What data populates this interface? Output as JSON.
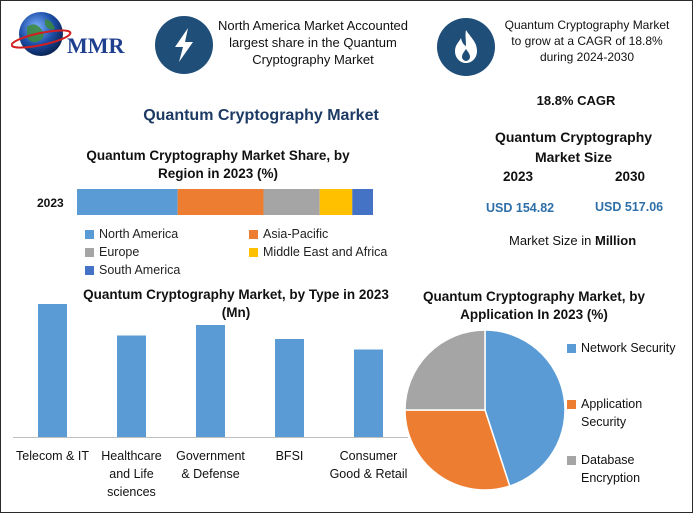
{
  "brand": {
    "logo_text": "MMR"
  },
  "header": {
    "left_fact": "North America Market Accounted largest share in the Quantum Cryptography Market",
    "right_fact": "Quantum Cryptography Market to grow at a CAGR of 18.8% during 2024-2030"
  },
  "main_title": "Quantum Cryptography Market",
  "cagr_label": "18.8% CAGR",
  "market_size": {
    "title": "Quantum Cryptography Market Size",
    "year_a": "2023",
    "year_b": "2030",
    "value_a": "USD 154.82",
    "value_b": "USD 517.06",
    "note_prefix": "Market Size in ",
    "note_unit": "Million"
  },
  "colors": {
    "blue": "#5b9bd5",
    "orange": "#ed7d31",
    "gray": "#a5a5a5",
    "yellow": "#ffc000",
    "darkblue": "#4472c4",
    "icon_circle": "#1f4e79"
  },
  "icons": {
    "left": "lightning-icon",
    "right": "flame-icon"
  },
  "chart_data": [
    {
      "type": "bar",
      "orientation": "horizontal-stacked",
      "title": "Quantum Cryptography Market Share, by Region in 2023 (%)",
      "categories": [
        "2023"
      ],
      "series": [
        {
          "name": "North America",
          "values": [
            34
          ]
        },
        {
          "name": "Asia-Pacific",
          "values": [
            29
          ]
        },
        {
          "name": "Europe",
          "values": [
            19
          ]
        },
        {
          "name": "Middle East and Africa",
          "values": [
            11
          ]
        },
        {
          "name": "South America",
          "values": [
            7
          ]
        }
      ],
      "xlim": [
        0,
        100
      ],
      "legend": "bottom"
    },
    {
      "type": "bar",
      "title": "Quantum Cryptography Market, by Type in 2023 (Mn)",
      "categories": [
        "Telecom & IT",
        "Healthcare and Life sciences",
        "Government & Defense",
        "BFSI",
        "Consumer Good & Retail"
      ],
      "values": [
        38,
        29,
        32,
        28,
        25
      ],
      "ylim": [
        0,
        40
      ],
      "grid": false
    },
    {
      "type": "pie",
      "title": "Quantum Cryptography Market, by Application In 2023 (%)",
      "categories": [
        "Network Security",
        "Application Security",
        "Database Encryption"
      ],
      "values": [
        45,
        30,
        25
      ],
      "legend": "right"
    }
  ]
}
